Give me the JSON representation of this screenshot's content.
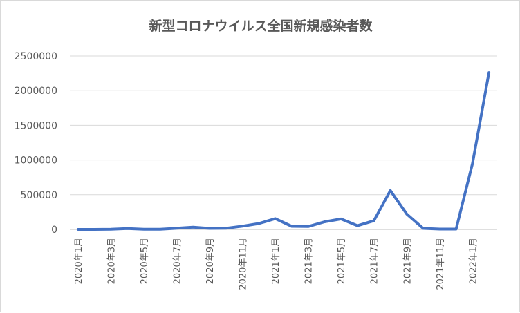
{
  "chart_data": {
    "type": "line",
    "title": "新型コロナウイルス全国新規感染者数",
    "xlabel": "",
    "ylabel": "",
    "ylim": [
      0,
      2500000
    ],
    "yticks": [
      "0",
      "500000",
      "1000000",
      "1500000",
      "2000000",
      "2500000"
    ],
    "categories": [
      "2020年1月",
      "2020年2月",
      "2020年3月",
      "2020年4月",
      "2020年5月",
      "2020年6月",
      "2020年7月",
      "2020年8月",
      "2020年9月",
      "2020年10月",
      "2020年11月",
      "2020年12月",
      "2021年1月",
      "2021年2月",
      "2021年3月",
      "2021年4月",
      "2021年5月",
      "2021年6月",
      "2021年7月",
      "2021年8月",
      "2021年9月",
      "2021年10月",
      "2021年11月",
      "2021年12月",
      "2022年1月",
      "2022年2月"
    ],
    "xtick_labels": [
      "2020年1月",
      "",
      "2020年3月",
      "",
      "2020年5月",
      "",
      "2020年7月",
      "",
      "2020年9月",
      "",
      "2020年11月",
      "",
      "2021年1月",
      "",
      "2021年3月",
      "",
      "2021年5月",
      "",
      "2021年7月",
      "",
      "2021年9月",
      "",
      "2021年11月",
      "",
      "2022年1月",
      ""
    ],
    "series": [
      {
        "color": "#4472c4",
        "values": [
          15,
          230,
          1800,
          12000,
          2500,
          1800,
          17000,
          32000,
          15000,
          17000,
          47000,
          85000,
          155000,
          45000,
          42000,
          110000,
          150000,
          54000,
          125000,
          560000,
          220000,
          15000,
          5000,
          5000,
          950000,
          2260000
        ]
      }
    ],
    "grid": true,
    "legend": "none"
  }
}
